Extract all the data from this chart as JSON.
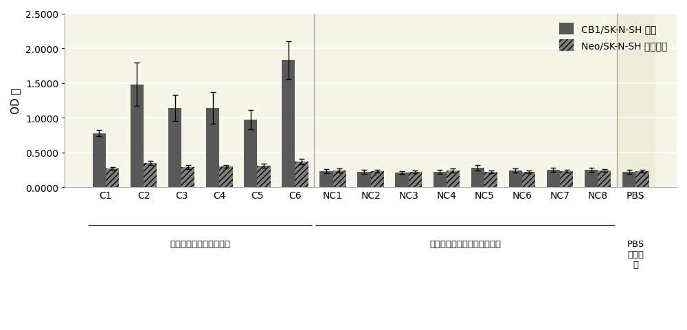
{
  "categories": [
    "C1",
    "C2",
    "C3",
    "C4",
    "C5",
    "C6",
    "NC1",
    "NC2",
    "NC3",
    "NC4",
    "NC5",
    "NC6",
    "NC7",
    "NC8",
    "PBS"
  ],
  "cb1_values": [
    0.78,
    1.48,
    1.14,
    1.14,
    0.97,
    1.83,
    0.23,
    0.22,
    0.21,
    0.22,
    0.28,
    0.24,
    0.25,
    0.25,
    0.22
  ],
  "neo_values": [
    0.27,
    0.35,
    0.29,
    0.3,
    0.31,
    0.37,
    0.24,
    0.23,
    0.22,
    0.24,
    0.22,
    0.22,
    0.23,
    0.24,
    0.23
  ],
  "cb1_errors": [
    0.04,
    0.31,
    0.19,
    0.23,
    0.14,
    0.27,
    0.03,
    0.03,
    0.02,
    0.03,
    0.04,
    0.03,
    0.03,
    0.03,
    0.03
  ],
  "neo_errors": [
    0.02,
    0.03,
    0.03,
    0.02,
    0.03,
    0.04,
    0.03,
    0.02,
    0.02,
    0.03,
    0.02,
    0.02,
    0.02,
    0.02,
    0.02
  ],
  "cb1_color": "#595959",
  "neo_color": "#7f7f7f",
  "hatch_neo": "////",
  "ylabel": "OD 值",
  "ylim": [
    0,
    2.5
  ],
  "yticks": [
    0.0,
    0.5,
    1.0,
    1.5,
    2.0,
    2.5
  ],
  "ytick_labels": [
    "0.0000",
    "0.5000",
    "1.0000",
    "1.5000",
    "2.0000",
    "2.5000"
  ],
  "group1_label": "大麻吸食人员的毛发样本",
  "group2_label": "无吸食史的正常人的毛发样本",
  "group3_label": "PBS\n空白对\n照",
  "legend_cb1": "CB1/SK-N-SH 细胞",
  "legend_neo": "Neo/SK-N-SH 对照细胞",
  "bar_width": 0.35,
  "group1_indices": [
    0,
    1,
    2,
    3,
    4,
    5
  ],
  "group2_indices": [
    6,
    7,
    8,
    9,
    10,
    11,
    12,
    13
  ],
  "group3_indices": [
    14
  ],
  "background_color": "#ffffff",
  "plot_bg_color": "#f5f5e8",
  "grid_color": "#ffffff",
  "font_size": 10,
  "title_font_size": 11
}
